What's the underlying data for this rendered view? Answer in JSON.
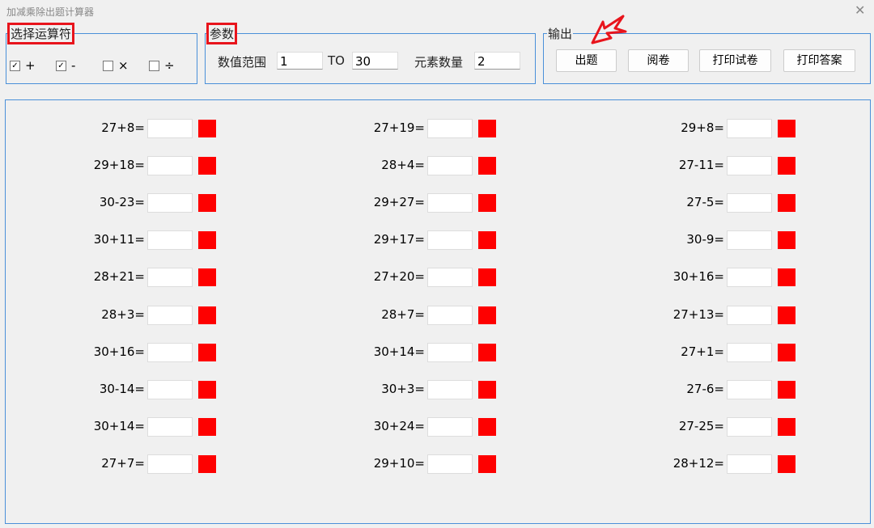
{
  "window": {
    "title": "加减乘除出题计算器",
    "close_icon": "close-icon"
  },
  "operators": {
    "legend": "选择运算符",
    "items": [
      {
        "label": "+",
        "checked": true
      },
      {
        "label": "-",
        "checked": true
      },
      {
        "label": "×",
        "checked": false
      },
      {
        "label": "÷",
        "checked": false
      }
    ]
  },
  "params": {
    "legend": "参数",
    "range_label": "数值范围",
    "from": "1",
    "to_label": "TO",
    "to": "30",
    "count_label": "元素数量",
    "count": "2"
  },
  "output": {
    "legend": "输出",
    "buttons": [
      "出题",
      "阅卷",
      "打印试卷",
      "打印答案"
    ]
  },
  "annotation_color": "#e8141c",
  "result_indicator_color": "#fe0000",
  "questions": [
    [
      "27+8=",
      "29+18=",
      "30-23=",
      "30+11=",
      "28+21=",
      "28+3=",
      "30+16=",
      "30-14=",
      "30+14=",
      "27+7="
    ],
    [
      "27+19=",
      "28+4=",
      "29+27=",
      "29+17=",
      "27+20=",
      "28+7=",
      "30+14=",
      "30+3=",
      "30+24=",
      "29+10="
    ],
    [
      "29+8=",
      "27-11=",
      "27-5=",
      "30-9=",
      "30+16=",
      "27+13=",
      "27+1=",
      "27-6=",
      "27-25=",
      "28+12="
    ]
  ]
}
